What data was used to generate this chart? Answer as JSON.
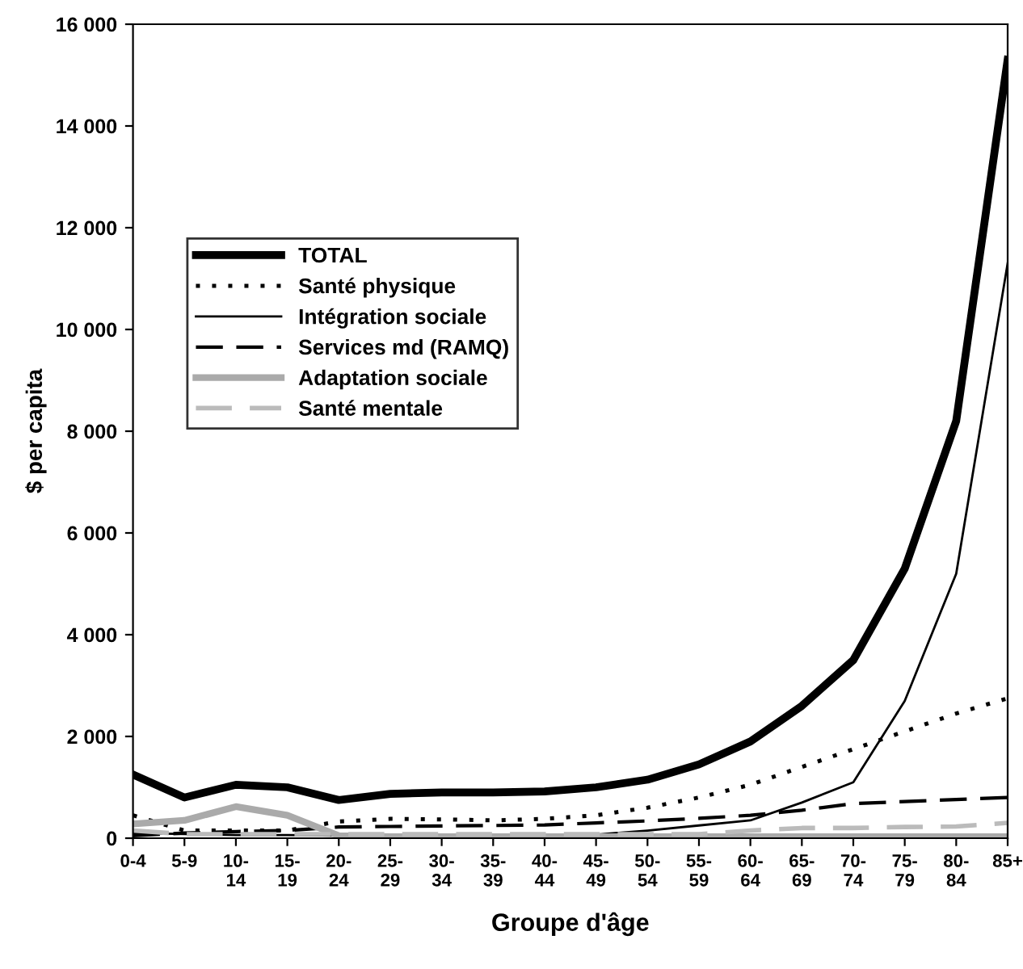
{
  "chart_data": {
    "type": "line",
    "xlabel": "Groupe d'âge",
    "ylabel": "$ per capita",
    "categories": [
      "0-4",
      "5-9",
      "10-\n14",
      "15-\n19",
      "20-\n24",
      "25-\n29",
      "30-\n34",
      "35-\n39",
      "40-\n44",
      "45-\n49",
      "50-\n54",
      "55-\n59",
      "60-\n64",
      "65-\n69",
      "70-\n74",
      "75-\n79",
      "80-\n84",
      "85+"
    ],
    "ylim": [
      0,
      16000
    ],
    "yticks": [
      {
        "value": 0,
        "label": "0"
      },
      {
        "value": 2000,
        "label": "2 000"
      },
      {
        "value": 4000,
        "label": "4 000"
      },
      {
        "value": 6000,
        "label": "6 000"
      },
      {
        "value": 8000,
        "label": "8 000"
      },
      {
        "value": 10000,
        "label": "10 000"
      },
      {
        "value": 12000,
        "label": "12 000"
      },
      {
        "value": 14000,
        "label": "14 000"
      },
      {
        "value": 16000,
        "label": "16 000"
      }
    ],
    "grid": false,
    "legend": "left",
    "marker": "none",
    "series": [
      {
        "name": "TOTAL",
        "color": "#000000",
        "line_style": "solid",
        "values": [
          1250,
          800,
          1050,
          1000,
          750,
          870,
          900,
          900,
          920,
          1000,
          1150,
          1450,
          1900,
          2600,
          3500,
          5300,
          8200,
          15300
        ]
      },
      {
        "name": "Santé physique",
        "color": "#000000",
        "line_style": "dotted",
        "values": [
          450,
          150,
          150,
          150,
          330,
          380,
          370,
          350,
          380,
          450,
          600,
          800,
          1050,
          1400,
          1750,
          2100,
          2450,
          2750
        ]
      },
      {
        "name": "Intégration sociale",
        "color": "#000000",
        "line_style": "solid",
        "values": [
          100,
          80,
          60,
          60,
          50,
          50,
          50,
          50,
          50,
          70,
          150,
          250,
          350,
          700,
          1100,
          2700,
          5200,
          11300
        ]
      },
      {
        "name": "Services md (RAMQ)",
        "color": "#000000",
        "line_style": "dashed",
        "values": [
          50,
          100,
          130,
          150,
          220,
          230,
          240,
          250,
          260,
          300,
          340,
          390,
          450,
          550,
          680,
          720,
          760,
          800
        ]
      },
      {
        "name": "Adaptation sociale",
        "color": "#aaaaaa",
        "line_style": "solid",
        "values": [
          280,
          350,
          620,
          450,
          50,
          30,
          30,
          30,
          30,
          30,
          30,
          30,
          30,
          30,
          30,
          30,
          30,
          30
        ]
      },
      {
        "name": "Santé mentale",
        "color": "#bbbbbb",
        "line_style": "dashed",
        "values": [
          150,
          80,
          80,
          80,
          80,
          80,
          80,
          80,
          80,
          80,
          80,
          80,
          150,
          200,
          200,
          220,
          230,
          300
        ]
      }
    ]
  }
}
